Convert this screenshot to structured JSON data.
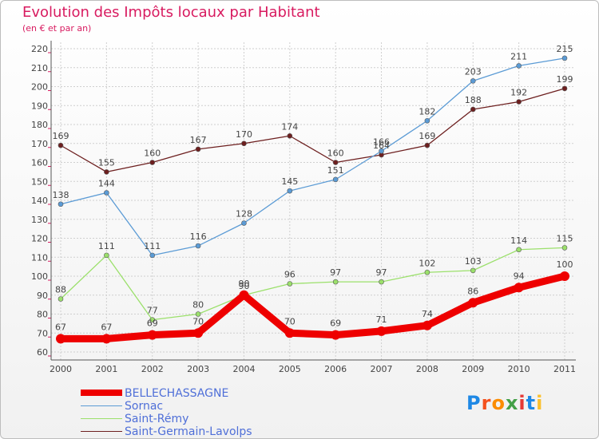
{
  "title": "Evolution des Impôts locaux par Habitant",
  "subtitle": "(en € et par an)",
  "logo": [
    "P",
    "r",
    "o",
    "x",
    "i",
    "t",
    "i"
  ],
  "logo_colors": [
    "#1e88e5",
    "#f4511e",
    "#fb8c00",
    "#43a047",
    "#e53935",
    "#1e88e5",
    "#fbc02d"
  ],
  "chart_data": {
    "type": "line",
    "x": [
      "2000",
      "2001",
      "2002",
      "2003",
      "2004",
      "2005",
      "2006",
      "2007",
      "2008",
      "2009",
      "2010",
      "2011"
    ],
    "ylim": [
      60,
      220
    ],
    "yticks": [
      "60",
      "70",
      "80",
      "90",
      "100",
      "110",
      "120",
      "130",
      "140",
      "150",
      "160",
      "170",
      "180",
      "190",
      "200",
      "210",
      "220"
    ],
    "series": [
      {
        "name": "Saint-Germain-Lavolps",
        "color": "#6d1f1f",
        "values": [
          169,
          155,
          160,
          167,
          170,
          174,
          160,
          164,
          169,
          188,
          192,
          199
        ]
      },
      {
        "name": "Sornac",
        "color": "#5b9bd5",
        "values": [
          138,
          144,
          111,
          116,
          128,
          145,
          151,
          166,
          182,
          203,
          211,
          215
        ]
      },
      {
        "name": "Saint-Rémy",
        "color": "#9be06b",
        "values": [
          88,
          111,
          77,
          80,
          90,
          96,
          97,
          97,
          102,
          103,
          114,
          115
        ]
      },
      {
        "name": "BELLECHASSAGNE",
        "color": "#ee0000",
        "values": [
          67,
          67,
          69,
          70,
          90,
          70,
          69,
          71,
          74,
          86,
          94,
          100
        ]
      }
    ],
    "legend": [
      "BELLECHASSAGNE",
      "Sornac",
      "Saint-Rémy",
      "Saint-Germain-Lavolps"
    ]
  }
}
